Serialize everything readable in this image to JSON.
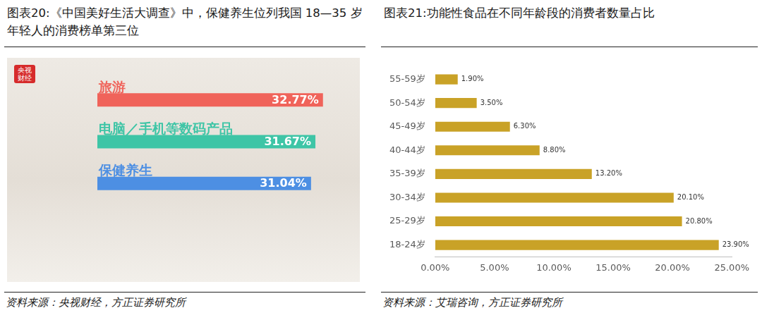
{
  "chart_data": [
    {
      "type": "bar",
      "title": "图表20:《中国美好生活大调查》中，保健养生位列我国 18—35 岁年轻人的消费榜单第三位",
      "source": "资料来源：央视财经，方正证券研究所",
      "annotations": [
        "央视财经"
      ],
      "orientation": "horizontal",
      "categories": [
        "旅游",
        "电脑／手机等数码产品",
        "保健养生"
      ],
      "values": [
        32.77,
        31.67,
        31.04
      ],
      "value_labels": [
        "32.77%",
        "31.67%",
        "31.04%"
      ],
      "colors": [
        "#f0635a",
        "#3ec5a6",
        "#4d8fe3"
      ],
      "xlim": [
        0,
        33
      ],
      "xticks": [],
      "tick_labels": false,
      "data_labels": true,
      "grid": false
    },
    {
      "type": "bar",
      "title": "图表21:功能性食品在不同年龄段的消费者数量占比",
      "source": "资料来源：艾瑞咨询，方正证券研究所",
      "orientation": "horizontal",
      "categories": [
        "55-59岁",
        "50-54岁",
        "45-49岁",
        "40-44岁",
        "35-39岁",
        "30-34岁",
        "25-29岁",
        "18-24岁"
      ],
      "values": [
        1.9,
        3.5,
        6.3,
        8.8,
        13.2,
        20.1,
        20.8,
        23.9
      ],
      "value_labels": [
        "1.90%",
        "3.50%",
        "6.30%",
        "8.80%",
        "13.20%",
        "20.10%",
        "20.80%",
        "23.90%"
      ],
      "color": "#c9a227",
      "xlim": [
        0,
        25
      ],
      "xticks": [
        {
          "value": 0,
          "label": "0.00%"
        },
        {
          "value": 5,
          "label": "5.00%"
        },
        {
          "value": 10,
          "label": "10.00%"
        },
        {
          "value": 15,
          "label": "15.00%"
        },
        {
          "value": 20,
          "label": "20.00%"
        },
        {
          "value": 25,
          "label": "25.00%"
        }
      ],
      "data_labels": true,
      "grid": false
    }
  ]
}
